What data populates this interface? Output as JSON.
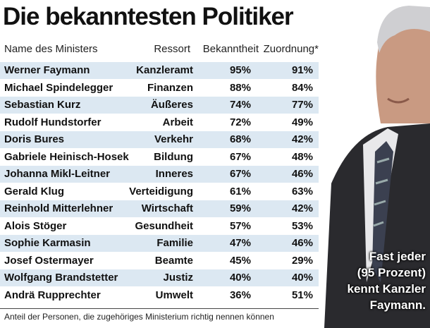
{
  "title": "Die bekanntesten Politiker",
  "table": {
    "header": [
      "Name des Ministers",
      "Ressort",
      "Bekanntheit",
      "Zuordnung*"
    ],
    "rows": [
      [
        "Werner Faymann",
        "Kanzleramt",
        "95%",
        "91%"
      ],
      [
        "Michael Spindelegger",
        "Finanzen",
        "88%",
        "84%"
      ],
      [
        "Sebastian Kurz",
        "Äußeres",
        "74%",
        "77%"
      ],
      [
        "Rudolf Hundstorfer",
        "Arbeit",
        "72%",
        "49%"
      ],
      [
        "Doris Bures",
        "Verkehr",
        "68%",
        "42%"
      ],
      [
        "Gabriele Heinisch-Hosek",
        "Bildung",
        "67%",
        "48%"
      ],
      [
        "Johanna Mikl-Leitner",
        "Inneres",
        "67%",
        "46%"
      ],
      [
        "Gerald Klug",
        "Verteidigung",
        "61%",
        "63%"
      ],
      [
        "Reinhold Mitterlehner",
        "Wirtschaft",
        "59%",
        "42%"
      ],
      [
        "Alois Stöger",
        "Gesundheit",
        "57%",
        "53%"
      ],
      [
        "Sophie Karmasin",
        "Familie",
        "47%",
        "46%"
      ],
      [
        "Josef Ostermayer",
        "Beamte",
        "45%",
        "29%"
      ],
      [
        "Wolfgang Brandstetter",
        "Justiz",
        "40%",
        "40%"
      ],
      [
        "Andrä Rupprechter",
        "Umwelt",
        "36%",
        "51%"
      ]
    ]
  },
  "caption": [
    "Fast jeder",
    "(95 Prozent)",
    "kennt Kanzler",
    "Faymann."
  ],
  "footnote": "Anteil der Personen, die zugehöriges Ministerium richtig nennen können"
}
